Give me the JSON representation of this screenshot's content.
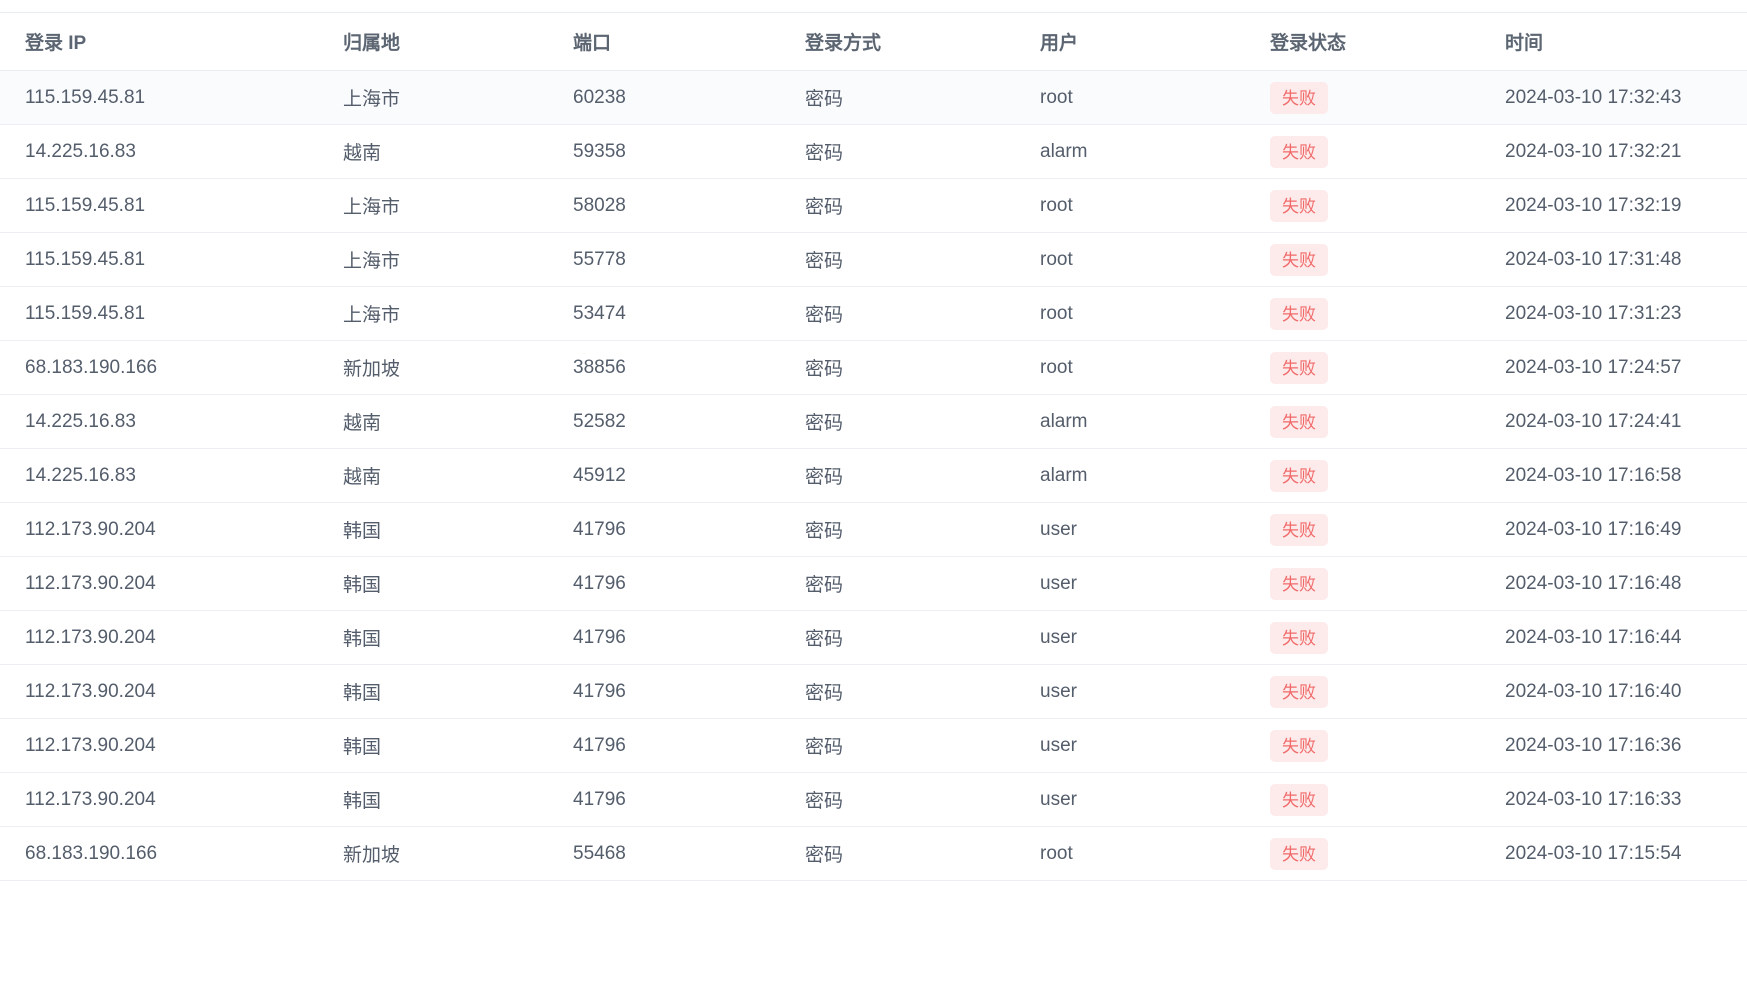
{
  "table": {
    "columns": [
      {
        "key": "ip",
        "label": "登录 IP"
      },
      {
        "key": "location",
        "label": "归属地"
      },
      {
        "key": "port",
        "label": "端口"
      },
      {
        "key": "method",
        "label": "登录方式"
      },
      {
        "key": "user",
        "label": "用户"
      },
      {
        "key": "status",
        "label": "登录状态"
      },
      {
        "key": "time",
        "label": "时间"
      }
    ],
    "status_style": {
      "text_color": "#f16a6a",
      "bg_color": "#fdeaea"
    },
    "rows": [
      {
        "ip": "115.159.45.81",
        "location": "上海市",
        "port": "60238",
        "method": "密码",
        "user": "root",
        "status": "失败",
        "time": "2024-03-10 17:32:43"
      },
      {
        "ip": "14.225.16.83",
        "location": "越南",
        "port": "59358",
        "method": "密码",
        "user": "alarm",
        "status": "失败",
        "time": "2024-03-10 17:32:21"
      },
      {
        "ip": "115.159.45.81",
        "location": "上海市",
        "port": "58028",
        "method": "密码",
        "user": "root",
        "status": "失败",
        "time": "2024-03-10 17:32:19"
      },
      {
        "ip": "115.159.45.81",
        "location": "上海市",
        "port": "55778",
        "method": "密码",
        "user": "root",
        "status": "失败",
        "time": "2024-03-10 17:31:48"
      },
      {
        "ip": "115.159.45.81",
        "location": "上海市",
        "port": "53474",
        "method": "密码",
        "user": "root",
        "status": "失败",
        "time": "2024-03-10 17:31:23"
      },
      {
        "ip": "68.183.190.166",
        "location": "新加坡",
        "port": "38856",
        "method": "密码",
        "user": "root",
        "status": "失败",
        "time": "2024-03-10 17:24:57"
      },
      {
        "ip": "14.225.16.83",
        "location": "越南",
        "port": "52582",
        "method": "密码",
        "user": "alarm",
        "status": "失败",
        "time": "2024-03-10 17:24:41"
      },
      {
        "ip": "14.225.16.83",
        "location": "越南",
        "port": "45912",
        "method": "密码",
        "user": "alarm",
        "status": "失败",
        "time": "2024-03-10 17:16:58"
      },
      {
        "ip": "112.173.90.204",
        "location": "韩国",
        "port": "41796",
        "method": "密码",
        "user": "user",
        "status": "失败",
        "time": "2024-03-10 17:16:49"
      },
      {
        "ip": "112.173.90.204",
        "location": "韩国",
        "port": "41796",
        "method": "密码",
        "user": "user",
        "status": "失败",
        "time": "2024-03-10 17:16:48"
      },
      {
        "ip": "112.173.90.204",
        "location": "韩国",
        "port": "41796",
        "method": "密码",
        "user": "user",
        "status": "失败",
        "time": "2024-03-10 17:16:44"
      },
      {
        "ip": "112.173.90.204",
        "location": "韩国",
        "port": "41796",
        "method": "密码",
        "user": "user",
        "status": "失败",
        "time": "2024-03-10 17:16:40"
      },
      {
        "ip": "112.173.90.204",
        "location": "韩国",
        "port": "41796",
        "method": "密码",
        "user": "user",
        "status": "失败",
        "time": "2024-03-10 17:16:36"
      },
      {
        "ip": "112.173.90.204",
        "location": "韩国",
        "port": "41796",
        "method": "密码",
        "user": "user",
        "status": "失败",
        "time": "2024-03-10 17:16:33"
      },
      {
        "ip": "68.183.190.166",
        "location": "新加坡",
        "port": "55468",
        "method": "密码",
        "user": "root",
        "status": "失败",
        "time": "2024-03-10 17:15:54"
      }
    ]
  }
}
